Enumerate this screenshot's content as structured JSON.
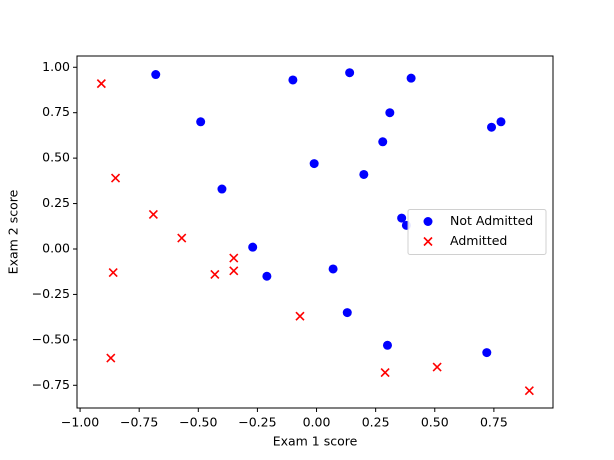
{
  "chart_data": {
    "type": "scatter",
    "x_label": "Exam 1 score",
    "y_label": "Exam 2 score",
    "xlim": [
      -1.013,
      1.0
    ],
    "ylim": [
      -0.875,
      1.062
    ],
    "xticks": [
      {
        "value": -1,
        "label": "−1.00"
      },
      {
        "value": -0.75,
        "label": "−0.75"
      },
      {
        "value": -0.5,
        "label": "−0.50"
      },
      {
        "value": -0.25,
        "label": "−0.25"
      },
      {
        "value": 0,
        "label": "0.00"
      },
      {
        "value": 0.25,
        "label": "0.25"
      },
      {
        "value": 0.5,
        "label": "0.50"
      },
      {
        "value": 0.75,
        "label": "0.75"
      }
    ],
    "yticks": [
      {
        "value": -0.75,
        "label": "−0.75"
      },
      {
        "value": -0.5,
        "label": "−0.50"
      },
      {
        "value": -0.25,
        "label": "−0.25"
      },
      {
        "value": 0,
        "label": "0.00"
      },
      {
        "value": 0.25,
        "label": "0.25"
      },
      {
        "value": 0.5,
        "label": "0.50"
      },
      {
        "value": 0.75,
        "label": "0.75"
      },
      {
        "value": 1,
        "label": "1.00"
      }
    ],
    "legend": "center right",
    "series": [
      {
        "name": "Not Admitted",
        "color": "#0000ff",
        "marker": "o",
        "x": [
          -0.68,
          -0.49,
          -0.1,
          0.14,
          0.4,
          0.31,
          0.78,
          0.74,
          0.28,
          -0.01,
          0.2,
          -0.4,
          0.36,
          0.38,
          -0.27,
          -0.21,
          0.07,
          0.13,
          0.3,
          0.72
        ],
        "values": [
          0.96,
          0.7,
          0.93,
          0.97,
          0.94,
          0.75,
          0.7,
          0.67,
          0.59,
          0.47,
          0.41,
          0.33,
          0.17,
          0.13,
          0.01,
          -0.15,
          -0.11,
          -0.35,
          -0.53,
          -0.57
        ]
      },
      {
        "name": "Admitted",
        "color": "#ff0000",
        "marker": "x",
        "x": [
          -0.91,
          -0.85,
          -0.69,
          -0.57,
          -0.35,
          -0.43,
          -0.35,
          -0.86,
          -0.07,
          -0.87,
          0.29,
          0.51,
          0.9
        ],
        "values": [
          0.91,
          0.39,
          0.19,
          0.06,
          -0.05,
          -0.14,
          -0.12,
          -0.13,
          -0.37,
          -0.6,
          -0.68,
          -0.65,
          -0.78
        ]
      }
    ]
  }
}
